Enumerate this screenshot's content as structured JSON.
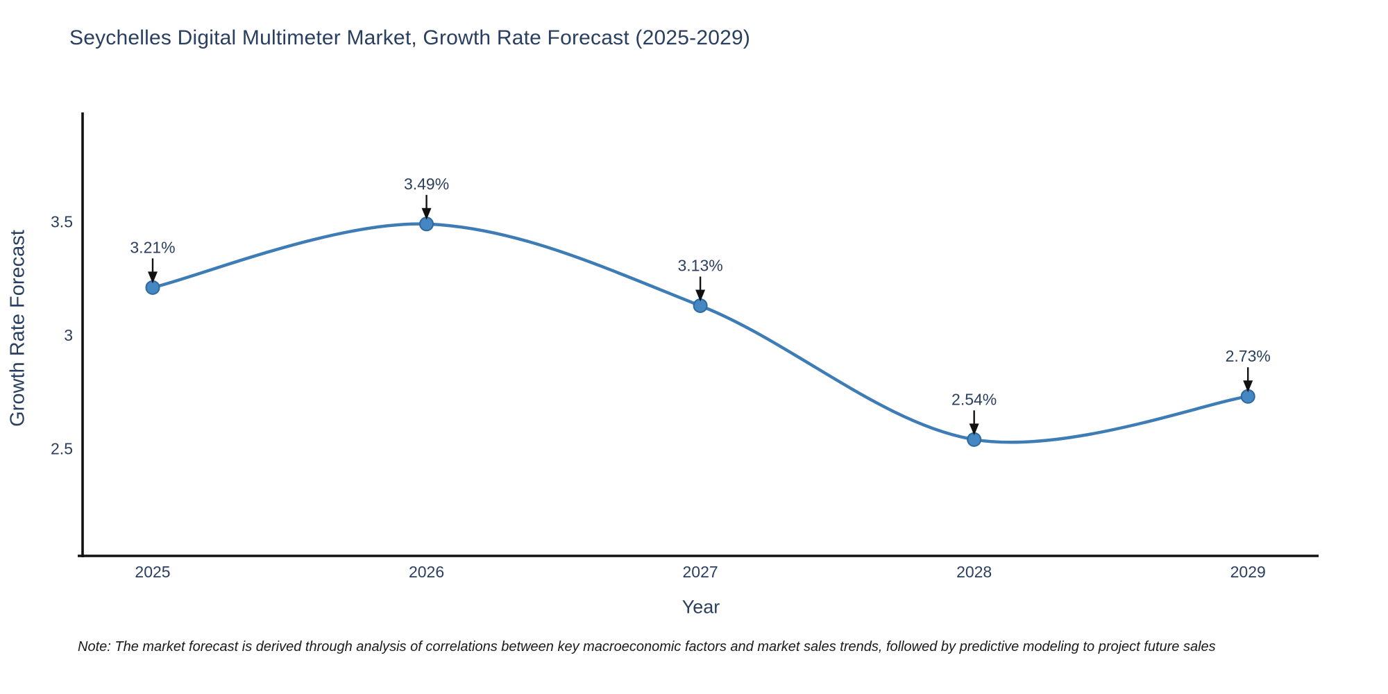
{
  "title": "Seychelles Digital Multimeter Market, Growth Rate Forecast (2025-2029)",
  "footnote": "Note: The market forecast is derived through analysis of correlations between key macroeconomic factors and market sales trends, followed by predictive modeling to project future sales",
  "chart_data": {
    "type": "line",
    "title": "Seychelles Digital Multimeter Market, Growth Rate Forecast (2025-2029)",
    "xlabel": "Year",
    "ylabel": "Growth Rate Forecast",
    "x": [
      2025,
      2026,
      2027,
      2028,
      2029
    ],
    "values": [
      3.21,
      3.49,
      3.13,
      2.54,
      2.73
    ],
    "point_labels": [
      "3.21%",
      "3.49%",
      "3.13%",
      "2.54%",
      "2.73%"
    ],
    "x_tick_labels": [
      "2025",
      "2026",
      "2027",
      "2028",
      "2029"
    ],
    "y_ticks": [
      2.5,
      3,
      3.5
    ],
    "y_tick_labels": [
      "2.5",
      "3",
      "3.5"
    ],
    "xlim": [
      2024.744,
      2029.258
    ],
    "ylim": [
      2.027,
      3.982
    ],
    "grid": false,
    "legend": "none",
    "line_shape": "spline",
    "annotations_have_arrows": true,
    "colors": {
      "line": "#3e7cb5",
      "marker": "#4487c2",
      "marker_edge": "#2e689f",
      "axis": "#111111",
      "tick_text": "#2a3f5f",
      "annotation_text": "#2a3f5f",
      "arrow": "#111111"
    }
  }
}
